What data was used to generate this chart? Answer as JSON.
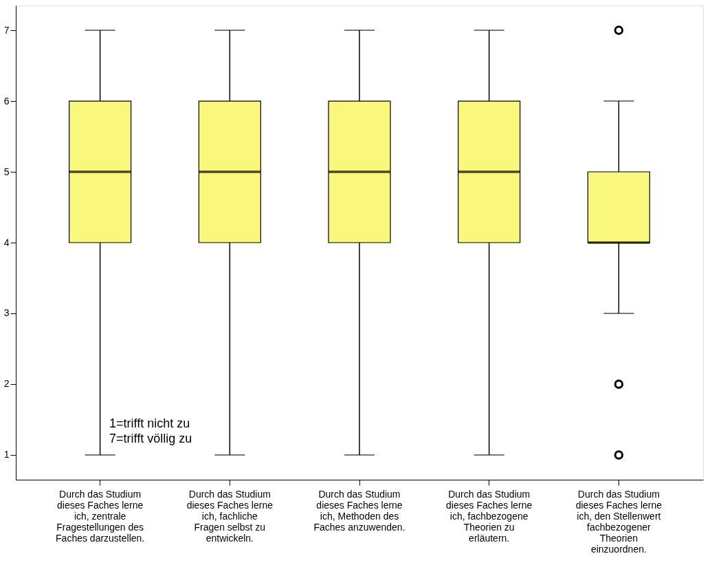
{
  "chart_data": {
    "type": "box",
    "categories": [
      "Durch das Studium dieses Faches lerne ich, zentrale Fragestellungen des Faches darzustellen.",
      "Durch das Studium dieses Faches lerne ich, fachliche Fragen selbst zu entwickeln.",
      "Durch das Studium dieses Faches lerne ich, Methoden des Faches anzuwenden.",
      "Durch das Studium dieses Faches lerne ich, fachbezogene Theorien zu erläutern.",
      "Durch das Studium dieses Faches lerne ich, den Stellenwert fachbezogener Theorien einzuordnen."
    ],
    "color": "#f9f77c",
    "boxes": [
      {
        "low": 1,
        "q1": 4,
        "median": 5,
        "q3": 6,
        "high": 7
      },
      {
        "low": 1,
        "q1": 4,
        "median": 5,
        "q3": 6,
        "high": 7
      },
      {
        "low": 1,
        "q1": 4,
        "median": 5,
        "q3": 6,
        "high": 7
      },
      {
        "low": 1,
        "q1": 4,
        "median": 5,
        "q3": 6,
        "high": 7
      },
      {
        "low": 3,
        "q1": 4,
        "median": 4,
        "q3": 5,
        "high": 6,
        "outliers": [
          7,
          2,
          1
        ]
      }
    ],
    "ylim": [
      0.65,
      7.35
    ],
    "yticks": [
      1,
      2,
      3,
      4,
      5,
      6,
      7
    ],
    "grid": false,
    "annotations": [
      "1=trifft nicht zu\n7=trifft völlig zu"
    ]
  }
}
